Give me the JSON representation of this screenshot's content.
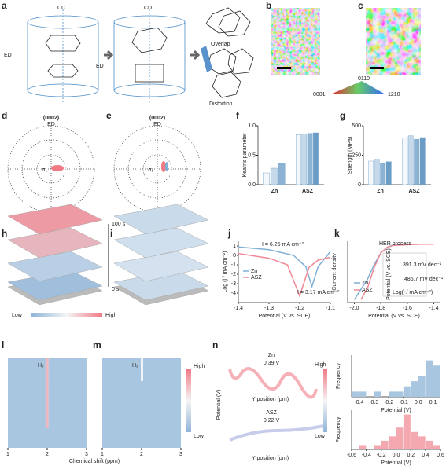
{
  "panel_letters": [
    "a",
    "b",
    "c",
    "d",
    "e",
    "f",
    "g",
    "h",
    "i",
    "j",
    "k",
    "l",
    "m",
    "n"
  ],
  "a": {
    "cd_1": "CD",
    "ed_1": "ED",
    "cd_2": "CD",
    "ed_2": "ED",
    "overlap": "Overlap",
    "distortion": "Distortion"
  },
  "ipf_key": {
    "top": "0110",
    "left": "0001",
    "right": "1210"
  },
  "d": {
    "title": "(0002)",
    "axis": "ED",
    "sigma": "σ₁"
  },
  "e": {
    "title": "(0002)",
    "axis": "ED",
    "sigma": "σ₁"
  },
  "h": {
    "time_top": "100 s",
    "time_bottom": "0 s",
    "low": "Low",
    "high": "High"
  },
  "l": {
    "gas": "H₂",
    "xlabel": "Chemical shift (ppm)",
    "xlim": [
      1,
      3
    ],
    "xticks": [
      1,
      2,
      3
    ]
  },
  "m": {
    "gas": "H₂",
    "xlim": [
      1,
      3
    ],
    "xticks": [
      1,
      2,
      3
    ]
  },
  "heatmap_scale": {
    "high": "High",
    "low": "Low"
  },
  "n": {
    "zn": {
      "name": "Zn",
      "value": "0.39 V",
      "xlabel": "Y position (μm)"
    },
    "asz": {
      "name": "ASZ",
      "value": "0.22 V",
      "xlabel": "Y position (μm)"
    },
    "ylabel": "Potential (V)",
    "high": "High",
    "low": "Low"
  },
  "chart_data": [
    {
      "type": "bar",
      "ylabel": "Kearns parameter",
      "ylim": [
        0,
        1.0
      ],
      "yticks": [
        {
          "value": 0,
          "label": "0.0"
        },
        0.5,
        {
          "value": 1,
          "label": "1.0"
        }
      ],
      "colors": [
        "#f4f8fc",
        "#c5d9ea",
        "#8db3d4",
        "#6a9cc6"
      ],
      "groups": [
        {
          "name": "Zn",
          "values": [
            0.2,
            0.28,
            0.37
          ]
        },
        {
          "name": "ASZ",
          "values": [
            0.85,
            0.86,
            0.87,
            0.88
          ]
        }
      ]
    },
    {
      "type": "bar",
      "ylabel": "Strength (MPa)",
      "ylim": [
        0,
        500
      ],
      "yticks": [
        0,
        250,
        500
      ],
      "colors": [
        "#f4f8fc",
        "#c5d9ea",
        "#8db3d4",
        "#6a9cc6"
      ],
      "groups": [
        {
          "name": "Zn",
          "values": [
            200,
            215,
            180,
            195
          ]
        },
        {
          "name": "ASZ",
          "values": [
            395,
            415,
            385,
            400
          ]
        }
      ]
    },
    {
      "type": "line",
      "ylabel": "Log (j / mA cm⁻²)",
      "xlabel": "Potential (V vs. SCE)",
      "xlim": [
        -1.4,
        -1.1
      ],
      "xticks": [
        -1.4,
        -1.3,
        -1.2,
        -1.1
      ],
      "ylim": [
        -5,
        1.5
      ],
      "yticks": [
        1,
        0,
        -1,
        -2,
        -3,
        -4
      ],
      "annotations": [
        "I = 6.25 mA cm⁻²",
        "I = 3.17 mA cm⁻²"
      ],
      "series": [
        {
          "name": "Zn",
          "color": "#7fb0d6",
          "x": [
            -1.4,
            -1.3,
            -1.22,
            -1.18,
            -1.16,
            -1.14,
            -1.1
          ],
          "values": [
            0.9,
            0.6,
            0.0,
            -1.2,
            -3.3,
            -1.2,
            0.4
          ]
        },
        {
          "name": "ASZ",
          "color": "#f08a95",
          "x": [
            -1.4,
            -1.3,
            -1.24,
            -1.2,
            -1.17,
            -1.14,
            -1.1
          ],
          "values": [
            0.2,
            -0.3,
            -1.0,
            -4.3,
            -1.3,
            -0.5,
            -0.2
          ]
        }
      ]
    },
    {
      "type": "line",
      "ylabel": "Current density",
      "xlabel": "Potential (V vs. SCE)",
      "xlim": [
        -2.05,
        -1.35
      ],
      "xticks": [
        {
          "value": -2,
          "label": "-2.0"
        },
        -1.8,
        -1.6,
        -1.4
      ],
      "ylim": [
        -1,
        0.05
      ],
      "annotations": [
        "HER process"
      ],
      "slope_zn": "486.7 mV dec⁻¹",
      "slope_asz": "391.3 mV dec⁻¹",
      "inset_xlabel": "Log(j / mA cm⁻²)",
      "inset_ylabel": "Potential (V vs. SCE)",
      "series": [
        {
          "name": "Zn",
          "color": "#7fb0d6",
          "x": [
            -2.0,
            -1.9,
            -1.85,
            -1.8,
            -1.75,
            -1.7,
            -1.5,
            -1.4
          ],
          "values": [
            -0.95,
            -0.6,
            -0.35,
            -0.15,
            -0.05,
            -0.01,
            0,
            0
          ]
        },
        {
          "name": "ASZ",
          "color": "#f08a95",
          "x": [
            -1.95,
            -1.9,
            -1.85,
            -1.8,
            -1.75,
            -1.7,
            -1.5,
            -1.4
          ],
          "values": [
            -0.95,
            -0.75,
            -0.4,
            -0.15,
            -0.05,
            -0.02,
            0,
            0
          ]
        }
      ]
    },
    {
      "type": "histogram",
      "ylabel": "Frequency",
      "xlabel": "Potential (V)",
      "color": "#a9c6e0",
      "xlim": [
        -0.45,
        0.15
      ],
      "ylim": [
        0,
        8
      ],
      "xticks": [
        -0.4,
        -0.3,
        -0.2,
        -0.1,
        {
          "value": 0,
          "label": "0.0"
        },
        0.1
      ],
      "bins": [
        -0.45,
        -0.4,
        -0.35,
        -0.3,
        -0.25,
        -0.2,
        -0.15,
        -0.1,
        -0.05,
        0,
        0.05,
        0.1,
        0.15
      ],
      "counts": [
        1,
        1,
        0,
        1,
        0,
        1,
        1,
        2,
        3,
        4,
        7,
        6
      ]
    },
    {
      "type": "histogram",
      "ylabel": "Frequency",
      "xlabel": "Potential (V)",
      "color": "#f4a8b0",
      "xlim": [
        -0.6,
        0.6
      ],
      "ylim": [
        0,
        9
      ],
      "xticks": [
        -0.6,
        -0.4,
        -0.2,
        {
          "value": 0,
          "label": "0.0"
        },
        0.2,
        0.4,
        0.6
      ],
      "bins": [
        -0.6,
        -0.5,
        -0.4,
        -0.3,
        -0.2,
        -0.1,
        0,
        0.1,
        0.2,
        0.3,
        0.4,
        0.5,
        0.6
      ],
      "counts": [
        0,
        1,
        0,
        1,
        2,
        3,
        5,
        8,
        4,
        3,
        2,
        1
      ]
    }
  ]
}
